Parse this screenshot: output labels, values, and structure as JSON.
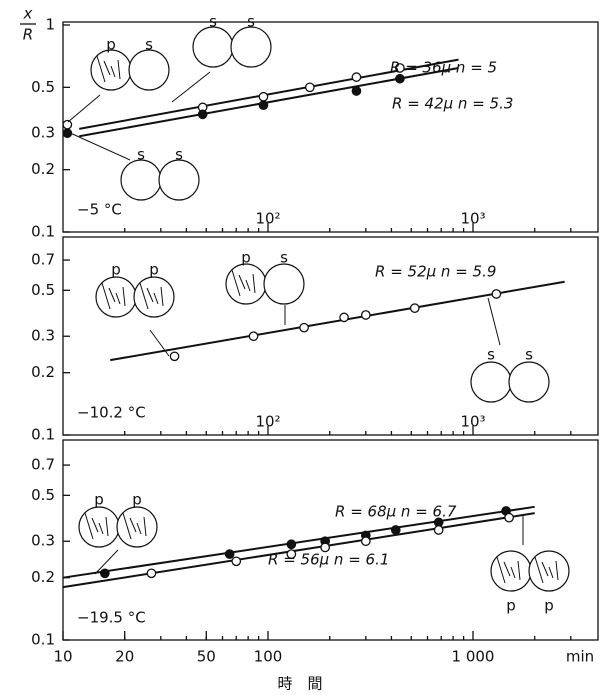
{
  "chart_data": [
    {
      "type": "scatter",
      "annotation": "−5 °C",
      "ylabel_top": "x",
      "ylabel_bottom": "R",
      "xlim": [
        10,
        4000
      ],
      "xticks": [
        {
          "value": 100,
          "label": "10²"
        },
        {
          "value": 1000,
          "label": "10³"
        }
      ],
      "ylim": [
        0.1,
        1
      ],
      "yticks": [
        0.1,
        0.2,
        0.3,
        0.5,
        1
      ],
      "series": [
        {
          "name": "R = 36μ   n = 5",
          "marker": "open",
          "x": [
            10.5,
            48,
            95,
            160,
            270,
            440
          ],
          "values": [
            0.33,
            0.4,
            0.45,
            0.5,
            0.56,
            0.62
          ],
          "fit_x": [
            12,
            850
          ],
          "fit_values": [
            0.315,
            0.68
          ]
        },
        {
          "name": "R = 42μ   n = 5.3",
          "marker": "filled",
          "x": [
            10.5,
            48,
            95,
            270,
            440
          ],
          "values": [
            0.3,
            0.37,
            0.41,
            0.48,
            0.55
          ],
          "fit_x": [
            12,
            850
          ],
          "fit_values": [
            0.29,
            0.62
          ]
        }
      ],
      "sketches": [
        {
          "labels": [
            "p",
            "s"
          ]
        },
        {
          "labels": [
            "s",
            "s"
          ]
        },
        {
          "labels": [
            "s",
            "s"
          ]
        }
      ]
    },
    {
      "type": "scatter",
      "annotation": "−10.2 °C",
      "xlim": [
        10,
        4000
      ],
      "xticks": [
        {
          "value": 100,
          "label": "10²"
        },
        {
          "value": 1000,
          "label": "10³"
        }
      ],
      "ylim": [
        0.1,
        1
      ],
      "yticks": [
        0.1,
        0.2,
        0.3,
        0.5,
        0.7
      ],
      "series": [
        {
          "name": "R = 52μ   n = 5.9",
          "marker": "open",
          "x": [
            35,
            85,
            150,
            235,
            300,
            520,
            1300
          ],
          "values": [
            0.24,
            0.3,
            0.33,
            0.37,
            0.38,
            0.41,
            0.48
          ],
          "fit_x": [
            17,
            2800
          ],
          "fit_values": [
            0.23,
            0.55
          ]
        }
      ],
      "sketches": [
        {
          "labels": [
            "p",
            "p"
          ]
        },
        {
          "labels": [
            "p",
            "s"
          ]
        },
        {
          "labels": [
            "s",
            "s"
          ]
        }
      ]
    },
    {
      "type": "scatter",
      "annotation": "−19.5 °C",
      "xlabel": "時　間",
      "xunit": "min",
      "xlim": [
        10,
        4000
      ],
      "xticks": [
        10,
        20,
        50,
        100,
        {
          "value": 1000,
          "label": "1 000"
        }
      ],
      "ylim": [
        0.1,
        1
      ],
      "yticks": [
        0.1,
        0.2,
        0.3,
        0.5,
        0.7
      ],
      "series": [
        {
          "name": "R = 68μ   n = 6.7",
          "marker": "filled",
          "x": [
            16,
            65,
            130,
            190,
            300,
            420,
            680,
            1450
          ],
          "values": [
            0.21,
            0.26,
            0.29,
            0.3,
            0.32,
            0.34,
            0.37,
            0.42
          ],
          "fit_x": [
            10,
            2000
          ],
          "fit_values": [
            0.2,
            0.44
          ]
        },
        {
          "name": "R = 56μ   n = 6.1",
          "marker": "open",
          "x": [
            27,
            70,
            130,
            190,
            300,
            680,
            1500
          ],
          "values": [
            0.21,
            0.24,
            0.26,
            0.28,
            0.3,
            0.34,
            0.39
          ],
          "fit_x": [
            10,
            2000
          ],
          "fit_values": [
            0.18,
            0.41
          ]
        }
      ],
      "sketches": [
        {
          "labels": [
            "p",
            "p"
          ]
        },
        {
          "labels": [
            "p",
            "p"
          ]
        }
      ]
    }
  ]
}
